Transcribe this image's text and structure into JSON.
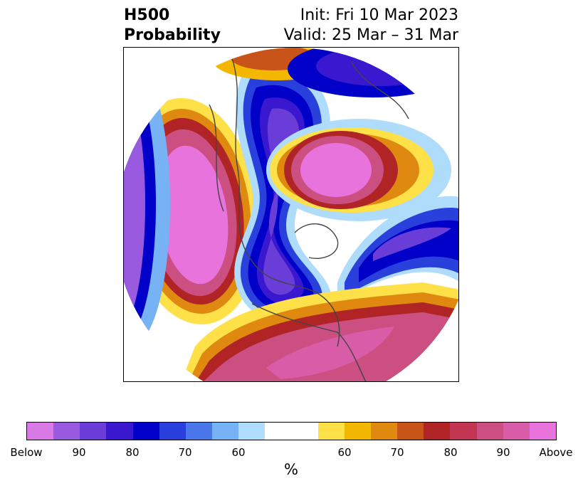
{
  "title": {
    "left_line1": "H500",
    "left_line2": "Probability",
    "right_line1": "Init: Fri 10 Mar 2023",
    "right_line2": "Valid: 25 Mar – 31 Mar"
  },
  "colorbar": {
    "label": "%",
    "below_colors": [
      "#d97ae6",
      "#9a5ae0",
      "#6a3dd8",
      "#3a18d0",
      "#0000c8",
      "#2a40dc",
      "#4a78ea",
      "#76b2f4",
      "#aedcfa"
    ],
    "neutral_color": "#ffffff",
    "above_colors": [
      "#fee048",
      "#f3b700",
      "#e08910",
      "#c8541a",
      "#b02426",
      "#c23652",
      "#cb4f80",
      "#d85ca8",
      "#e873dc"
    ],
    "ticks": [
      "Below",
      "90",
      "80",
      "70",
      "60",
      "60",
      "70",
      "80",
      "90",
      "Above"
    ]
  }
}
